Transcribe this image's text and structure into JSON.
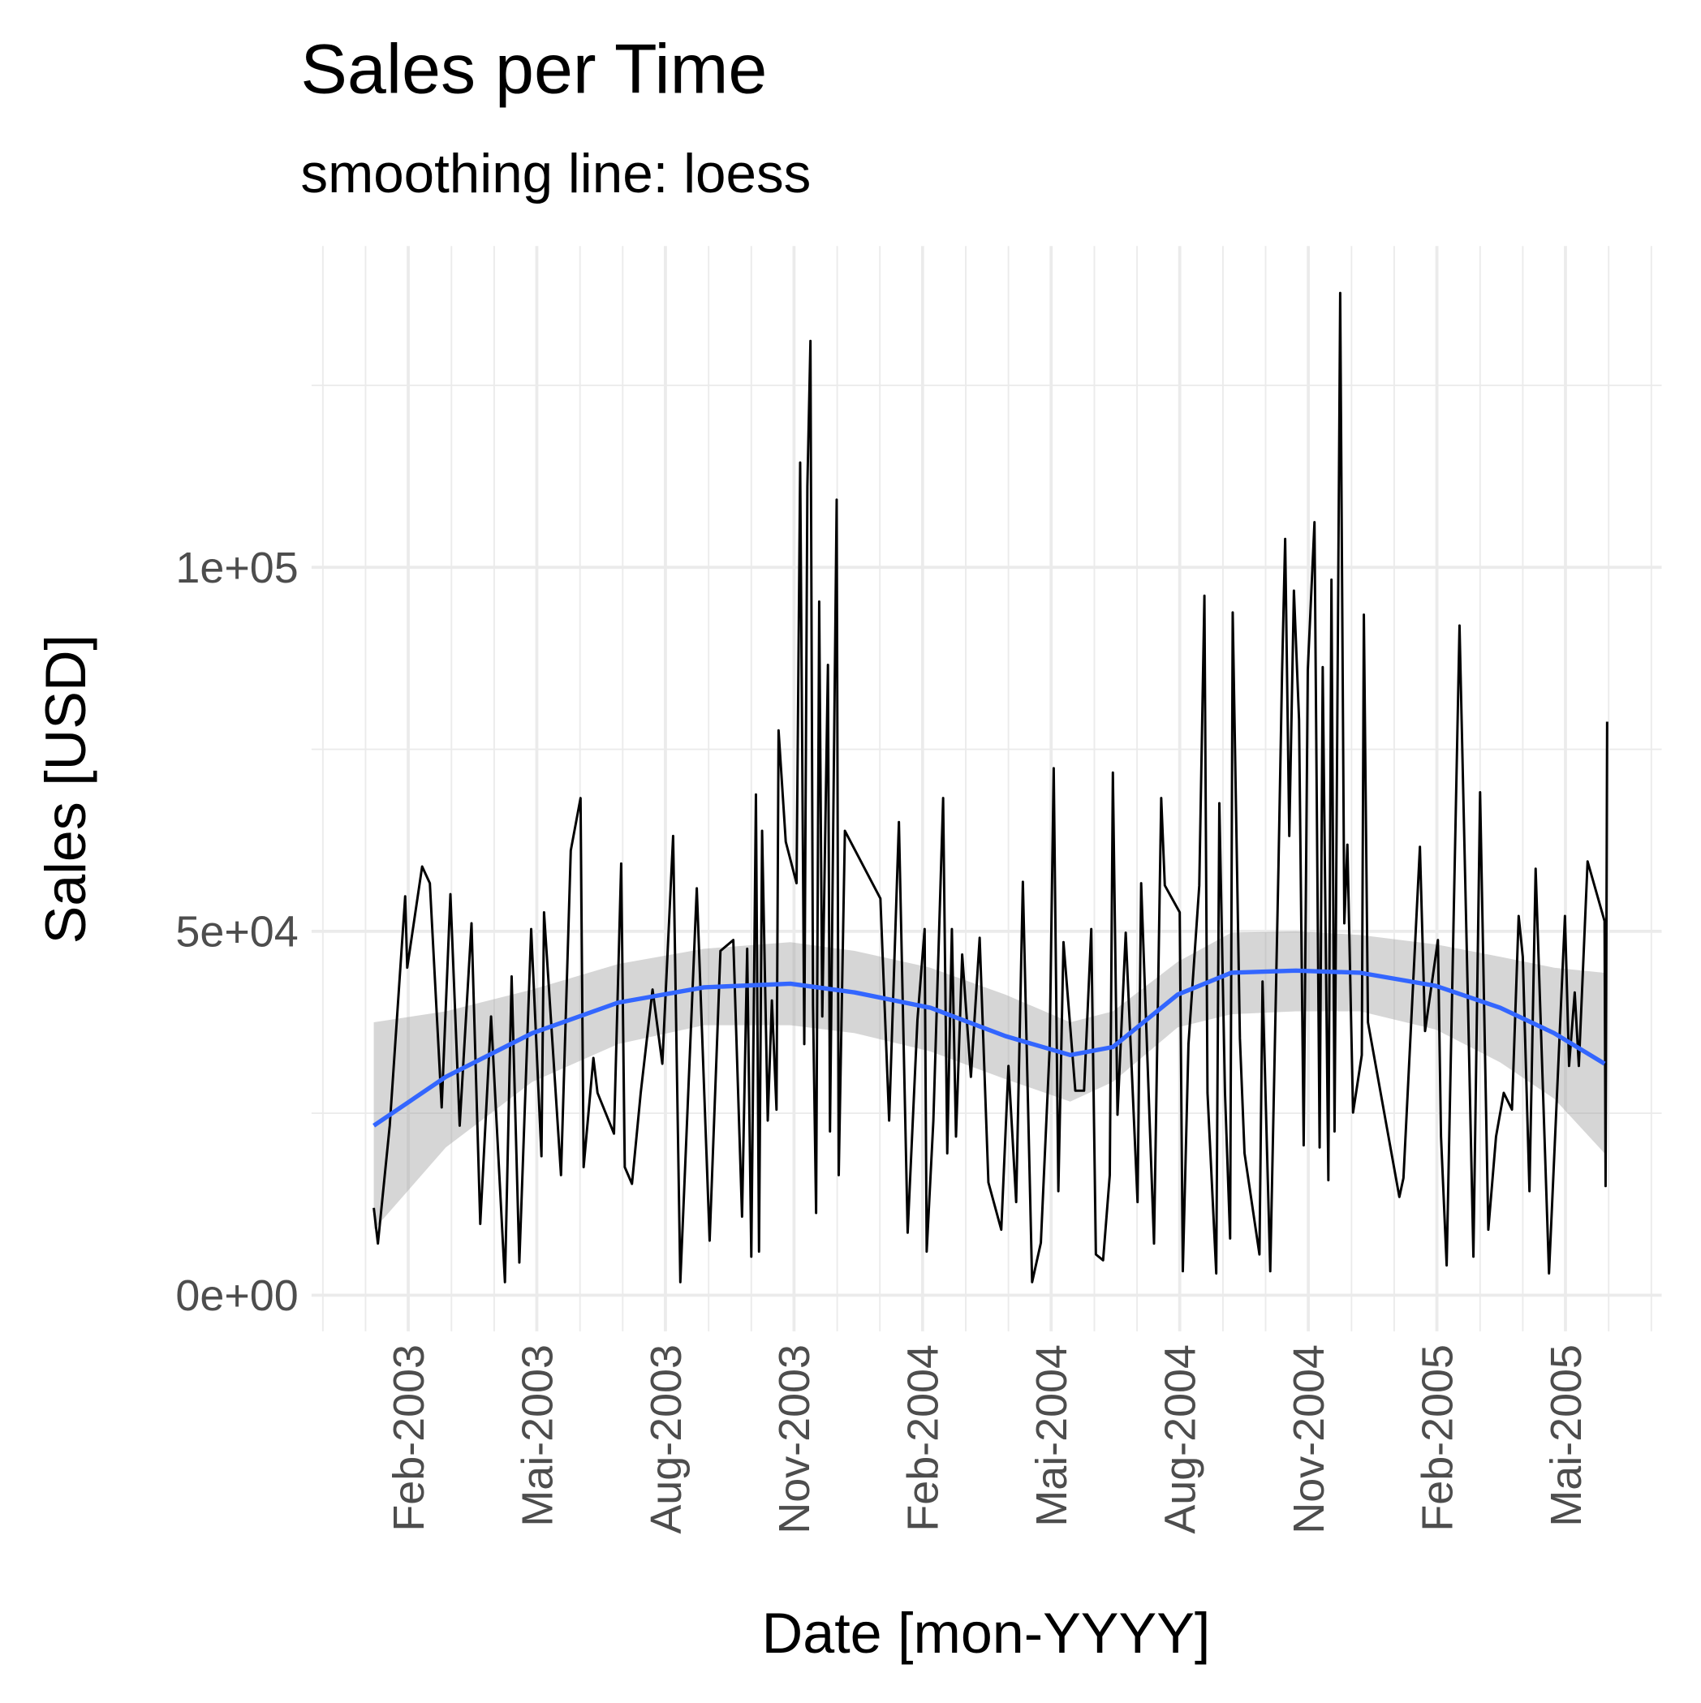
{
  "chart_data": {
    "type": "line",
    "title": "Sales per Time",
    "subtitle": "smoothing line: loess",
    "x_label": "Date [mon-YYYY]",
    "y_label": "Sales [USD]",
    "xlim": [
      2002.895,
      2005.52
    ],
    "ylim": [
      -4955,
      144144
    ],
    "xticks": [
      {
        "value": 2003.083,
        "label": "Feb-2003"
      },
      {
        "value": 2003.333,
        "label": "Mai-2003"
      },
      {
        "value": 2003.583,
        "label": "Aug-2003"
      },
      {
        "value": 2003.833,
        "label": "Nov-2003"
      },
      {
        "value": 2004.083,
        "label": "Feb-2004"
      },
      {
        "value": 2004.333,
        "label": "Mai-2004"
      },
      {
        "value": 2004.583,
        "label": "Aug-2004"
      },
      {
        "value": 2004.833,
        "label": "Nov-2004"
      },
      {
        "value": 2005.083,
        "label": "Feb-2005"
      },
      {
        "value": 2005.333,
        "label": "Mai-2005"
      }
    ],
    "x_minor_ticks": [
      2002.917,
      2003.0,
      2003.167,
      2003.25,
      2003.417,
      2003.5,
      2003.667,
      2003.75,
      2003.917,
      2004.0,
      2004.167,
      2004.25,
      2004.417,
      2004.5,
      2004.667,
      2004.75,
      2004.917,
      2005.0,
      2005.167,
      2005.25,
      2005.417,
      2005.5
    ],
    "yticks": [
      {
        "value": 0,
        "label": "0e+00"
      },
      {
        "value": 50000,
        "label": "5e+04"
      },
      {
        "value": 100000,
        "label": "1e+05"
      }
    ],
    "y_minor_ticks": [
      25000,
      75000,
      125000
    ],
    "grid": true,
    "series": [
      {
        "color": "#000000",
        "x": [
          2003.016,
          2003.024,
          2003.047,
          2003.077,
          2003.081,
          2003.11,
          2003.125,
          2003.148,
          2003.165,
          2003.183,
          2003.206,
          2003.223,
          2003.244,
          2003.271,
          2003.284,
          2003.299,
          2003.322,
          2003.342,
          2003.347,
          2003.38,
          2003.399,
          2003.418,
          2003.424,
          2003.443,
          2003.451,
          2003.483,
          2003.497,
          2003.504,
          2003.518,
          2003.535,
          2003.558,
          2003.577,
          2003.598,
          2003.612,
          2003.644,
          2003.669,
          2003.69,
          2003.715,
          2003.732,
          2003.742,
          2003.75,
          2003.759,
          2003.765,
          2003.771,
          2003.782,
          2003.79,
          2003.799,
          2003.803,
          2003.817,
          2003.838,
          2003.845,
          2003.853,
          2003.859,
          2003.865,
          2003.87,
          2003.876,
          2003.882,
          2003.888,
          2003.899,
          2003.903,
          2003.916,
          2003.92,
          2003.932,
          2004.001,
          2004.018,
          2004.037,
          2004.054,
          2004.073,
          2004.087,
          2004.091,
          2004.104,
          2004.123,
          2004.131,
          2004.14,
          2004.148,
          2004.16,
          2004.177,
          2004.194,
          2004.211,
          2004.236,
          2004.25,
          2004.265,
          2004.278,
          2004.296,
          2004.313,
          2004.33,
          2004.338,
          2004.347,
          2004.357,
          2004.38,
          2004.397,
          2004.411,
          2004.42,
          2004.434,
          2004.447,
          2004.453,
          2004.462,
          2004.478,
          2004.501,
          2004.508,
          2004.533,
          2004.547,
          2004.554,
          2004.583,
          2004.589,
          2004.6,
          2004.621,
          2004.631,
          2004.637,
          2004.654,
          2004.66,
          2004.671,
          2004.681,
          2004.686,
          2004.7,
          2004.709,
          2004.738,
          2004.744,
          2004.759,
          2004.775,
          2004.782,
          2004.788,
          2004.796,
          2004.805,
          2004.815,
          2004.824,
          2004.832,
          2004.845,
          2004.855,
          2004.861,
          2004.872,
          2004.878,
          2004.884,
          2004.895,
          2004.903,
          2004.909,
          2004.92,
          2004.937,
          2004.941,
          2004.949,
          2005.01,
          2005.018,
          2005.05,
          2005.06,
          2005.085,
          2005.091,
          2005.102,
          2005.127,
          2005.144,
          2005.154,
          2005.167,
          2005.183,
          2005.198,
          2005.213,
          2005.229,
          2005.242,
          2005.25,
          2005.263,
          2005.275,
          2005.301,
          2005.332,
          2005.34,
          2005.351,
          2005.359,
          2005.376,
          2005.409,
          2005.411,
          2005.414
        ],
        "values": [
          12000,
          7100,
          23300,
          54800,
          45000,
          58900,
          56600,
          25800,
          55100,
          23300,
          51100,
          9800,
          38300,
          1800,
          43800,
          4500,
          50300,
          19100,
          52600,
          16500,
          61100,
          68300,
          17600,
          32600,
          27800,
          22200,
          59300,
          17600,
          15300,
          27800,
          42000,
          31800,
          63100,
          1800,
          55900,
          7500,
          47300,
          48800,
          10800,
          47600,
          5300,
          68800,
          6000,
          63800,
          24000,
          40500,
          25500,
          77600,
          62300,
          56600,
          114400,
          34500,
          111100,
          131100,
          39800,
          11300,
          95300,
          38300,
          86600,
          22500,
          109300,
          16500,
          63800,
          54500,
          24000,
          65000,
          8600,
          37800,
          50300,
          6000,
          24000,
          68300,
          19500,
          50300,
          21800,
          46800,
          30000,
          49100,
          15500,
          9000,
          31500,
          12800,
          56800,
          1800,
          7200,
          33800,
          72400,
          14300,
          48500,
          28100,
          28100,
          50300,
          5600,
          4800,
          16500,
          71800,
          24800,
          49800,
          12800,
          56600,
          7100,
          68300,
          56300,
          52600,
          3300,
          34500,
          56300,
          96100,
          27800,
          3000,
          67600,
          27800,
          7800,
          93800,
          35300,
          19500,
          5600,
          43100,
          3300,
          58900,
          85600,
          103900,
          63100,
          96800,
          79100,
          20600,
          85900,
          106200,
          20300,
          86300,
          15800,
          98300,
          22500,
          137700,
          51100,
          61900,
          25100,
          33000,
          93500,
          37500,
          13500,
          16100,
          61600,
          36300,
          48800,
          21800,
          4100,
          92000,
          38300,
          5300,
          69100,
          9000,
          21800,
          27800,
          25500,
          52100,
          46500,
          14300,
          58600,
          3000,
          52100,
          31500,
          41600,
          31500,
          59600,
          51400,
          15000,
          78800
        ]
      },
      {
        "color": "#3366ff",
        "x": [
          2003.016,
          2003.156,
          2003.324,
          2003.491,
          2003.658,
          2003.826,
          2003.951,
          2004.098,
          2004.244,
          2004.37,
          2004.453,
          2004.579,
          2004.683,
          2004.809,
          2004.934,
          2005.081,
          2005.206,
          2005.311,
          2005.409
        ],
        "values": [
          23300,
          30000,
          36000,
          40200,
          42300,
          42800,
          41600,
          39500,
          35600,
          33000,
          34100,
          41300,
          44300,
          44600,
          44300,
          42500,
          39500,
          36000,
          31800
        ]
      }
    ],
    "band": {
      "color": "#999999",
      "x": [
        2003.016,
        2003.156,
        2003.324,
        2003.491,
        2003.658,
        2003.826,
        2003.951,
        2004.098,
        2004.244,
        2004.37,
        2004.453,
        2004.579,
        2004.683,
        2004.809,
        2004.934,
        2005.081,
        2005.206,
        2005.311,
        2005.409
      ],
      "upper": [
        37500,
        39000,
        42000,
        45500,
        47600,
        48500,
        47300,
        45000,
        41300,
        37500,
        39000,
        45800,
        49800,
        50000,
        49500,
        48200,
        46500,
        45000,
        44300
      ],
      "lower": [
        9000,
        20300,
        29300,
        34500,
        37100,
        37100,
        36000,
        33500,
        29700,
        26600,
        29300,
        36800,
        38600,
        39000,
        39000,
        36500,
        32000,
        27000,
        19500
      ]
    }
  }
}
